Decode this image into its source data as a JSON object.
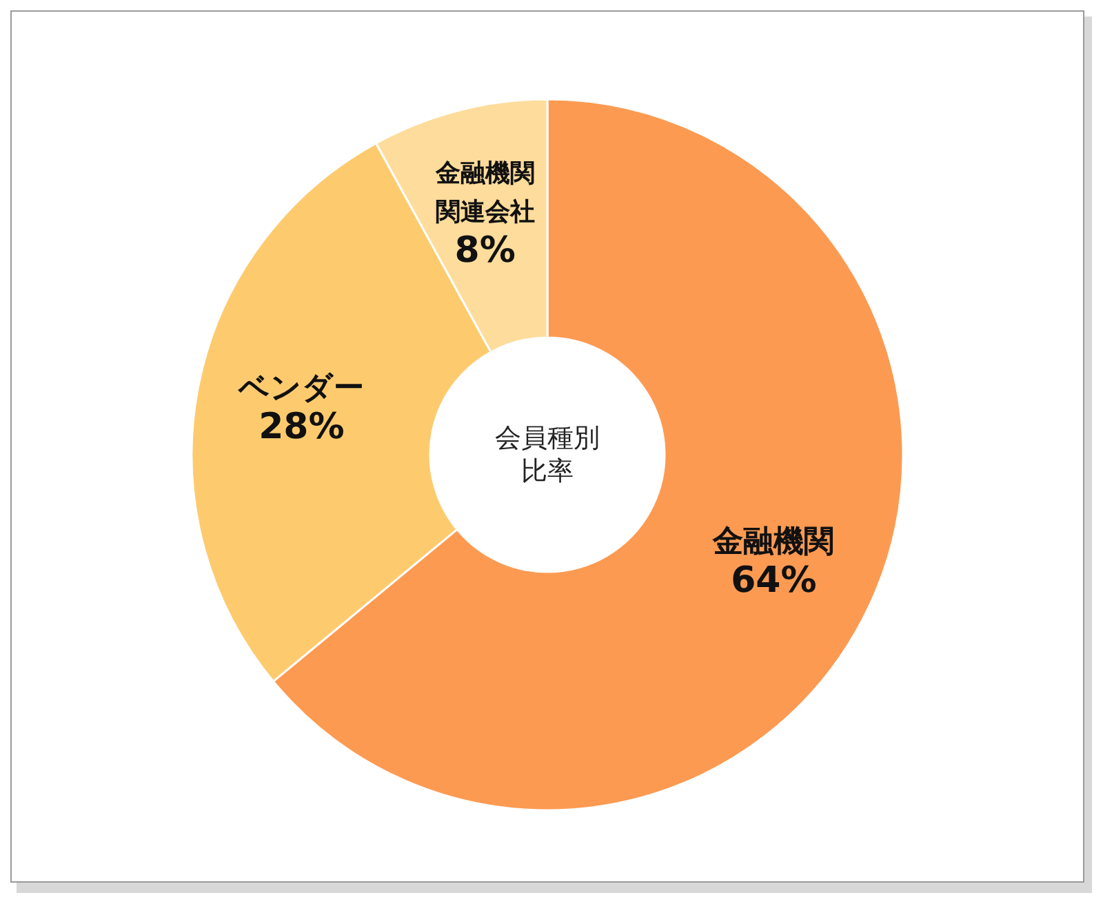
{
  "chart_data": {
    "type": "donut",
    "title": "会員種別比率",
    "categories": [
      "金融機関",
      "ベンダー",
      "金融機関関連会社"
    ],
    "values": [
      64,
      28,
      8
    ],
    "value_labels": [
      "64%",
      "28%",
      "8%"
    ],
    "colors": [
      "#fd9a52",
      "#fdcb6e",
      "#fedc9b"
    ]
  }
}
